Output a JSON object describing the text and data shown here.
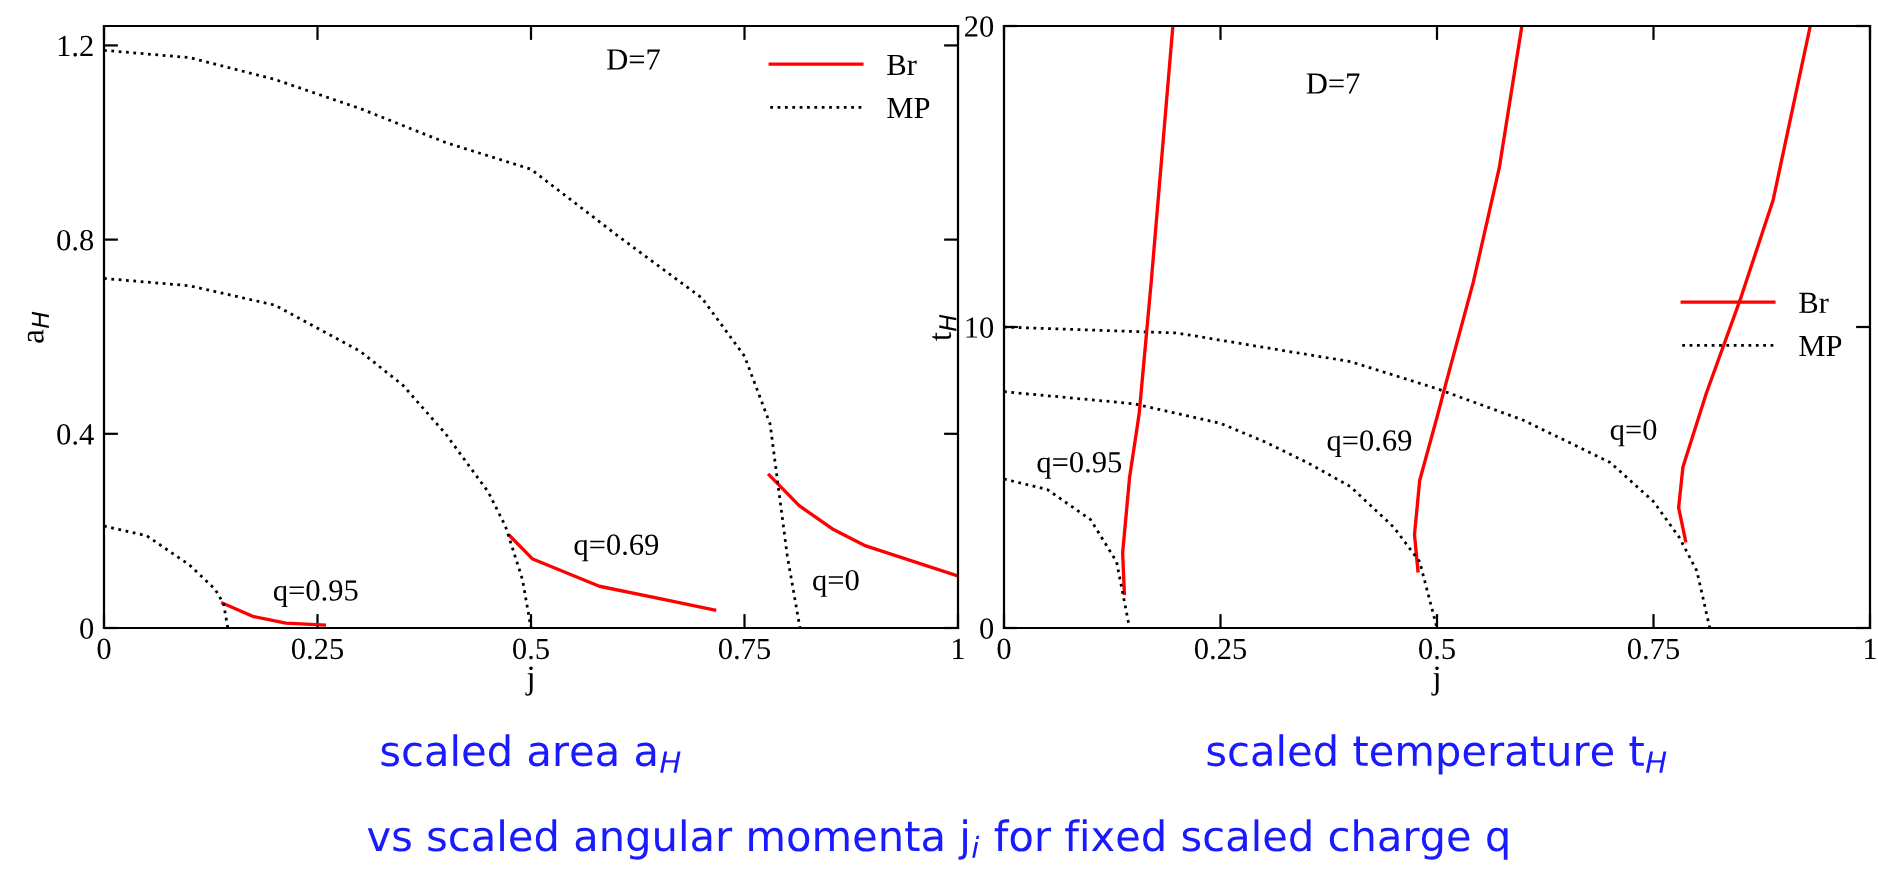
{
  "chart_data": [
    {
      "type": "line",
      "xlabel": "j",
      "ylabel": "a$_{H}$",
      "xlim": [
        0,
        1
      ],
      "ylim": [
        0,
        1.24
      ],
      "xticks": [
        0,
        0.25,
        0.5,
        0.75,
        1
      ],
      "yticks": [
        0,
        0.4,
        0.8,
        1.2
      ],
      "grid": false,
      "legend": "top right",
      "marker": "none",
      "series": [
        {
          "name": "Br",
          "color": "#ff0000",
          "line_style": "solid",
          "x": [
            0.779,
            0.814,
            0.853,
            0.892,
            1.0
          ],
          "values": [
            0.315,
            0.252,
            0.204,
            0.169,
            0.107
          ]
        },
        {
          "name": "MP",
          "color": "#000000",
          "line_style": "dotted",
          "x": [
            0,
            0.1,
            0.2,
            0.3,
            0.4,
            0.5,
            0.6,
            0.7,
            0.75,
            0.78,
            0.8,
            0.81,
            0.815
          ],
          "values": [
            1.19,
            1.175,
            1.13,
            1.07,
            1.0,
            0.945,
            0.81,
            0.68,
            0.56,
            0.42,
            0.15,
            0.05,
            0
          ]
        },
        {
          "color": "#ff0000",
          "line_style": "solid",
          "x": [
            0.475,
            0.502,
            0.58,
            0.658,
            0.715
          ],
          "values": [
            0.19,
            0.142,
            0.086,
            0.058,
            0.037
          ]
        },
        {
          "color": "#000000",
          "line_style": "dotted",
          "x": [
            0,
            0.1,
            0.2,
            0.3,
            0.35,
            0.4,
            0.45,
            0.47,
            0.49,
            0.5
          ],
          "values": [
            0.72,
            0.705,
            0.665,
            0.57,
            0.5,
            0.4,
            0.28,
            0.21,
            0.1,
            0
          ]
        },
        {
          "color": "#ff0000",
          "line_style": "solid",
          "x": [
            0.139,
            0.174,
            0.213,
            0.258
          ],
          "values": [
            0.051,
            0.024,
            0.01,
            0.006
          ]
        },
        {
          "color": "#000000",
          "line_style": "dotted",
          "x": [
            0,
            0.05,
            0.1,
            0.13,
            0.14,
            0.145
          ],
          "values": [
            0.21,
            0.19,
            0.13,
            0.08,
            0.05,
            0
          ]
        }
      ],
      "annotations": [
        "D=7",
        "q=0.95",
        "q=0.69",
        "q=0",
        "scaled area a$_{H}$"
      ]
    },
    {
      "type": "line",
      "xlabel": "j",
      "ylabel": "t$_{H}$",
      "xlim": [
        0,
        1
      ],
      "ylim": [
        0,
        20
      ],
      "xticks": [
        0,
        0.25,
        0.5,
        0.75,
        1
      ],
      "yticks": [
        0,
        10,
        20
      ],
      "grid": false,
      "legend": "right",
      "marker": "none",
      "series": [
        {
          "name": "Br",
          "color": "#ff0000",
          "line_style": "solid",
          "x": [
            0.787,
            0.779,
            0.784,
            0.811,
            0.85,
            0.888,
            0.931
          ],
          "values": [
            2.9,
            4.0,
            5.35,
            7.8,
            10.9,
            14.2,
            20
          ]
        },
        {
          "name": "MP",
          "color": "#000000",
          "line_style": "dotted",
          "x": [
            0,
            0.2,
            0.4,
            0.5,
            0.6,
            0.7,
            0.75,
            0.78,
            0.8,
            0.815
          ],
          "values": [
            10,
            9.8,
            8.85,
            7.95,
            6.9,
            5.5,
            4.2,
            3.0,
            1.9,
            0
          ]
        },
        {
          "color": "#ff0000",
          "line_style": "solid",
          "x": [
            0.478,
            0.474,
            0.48,
            0.5,
            0.511,
            0.542,
            0.572,
            0.598
          ],
          "values": [
            1.9,
            3.1,
            4.9,
            7.0,
            8.2,
            11.5,
            15.3,
            20
          ]
        },
        {
          "color": "#000000",
          "line_style": "dotted",
          "x": [
            0,
            0.15,
            0.25,
            0.3,
            0.35,
            0.4,
            0.45,
            0.48,
            0.5
          ],
          "values": [
            7.85,
            7.45,
            6.8,
            6.2,
            5.5,
            4.7,
            3.35,
            2.2,
            0
          ]
        },
        {
          "color": "#ff0000",
          "line_style": "solid",
          "x": [
            0.139,
            0.137,
            0.145,
            0.156,
            0.17,
            0.195
          ],
          "values": [
            1.15,
            2.5,
            5,
            7.1,
            11.5,
            20
          ]
        },
        {
          "color": "#000000",
          "line_style": "dotted",
          "x": [
            0,
            0.05,
            0.1,
            0.13,
            0.145
          ],
          "values": [
            4.95,
            4.6,
            3.6,
            2.2,
            0
          ]
        }
      ],
      "annotations": [
        "D=7",
        "q=0.95",
        "q=0.69",
        "q=0",
        "scaled temperature t$_{H}$",
        "vs scaled angular momenta j$_{i}$ for fixed scaled charge q"
      ]
    }
  ]
}
